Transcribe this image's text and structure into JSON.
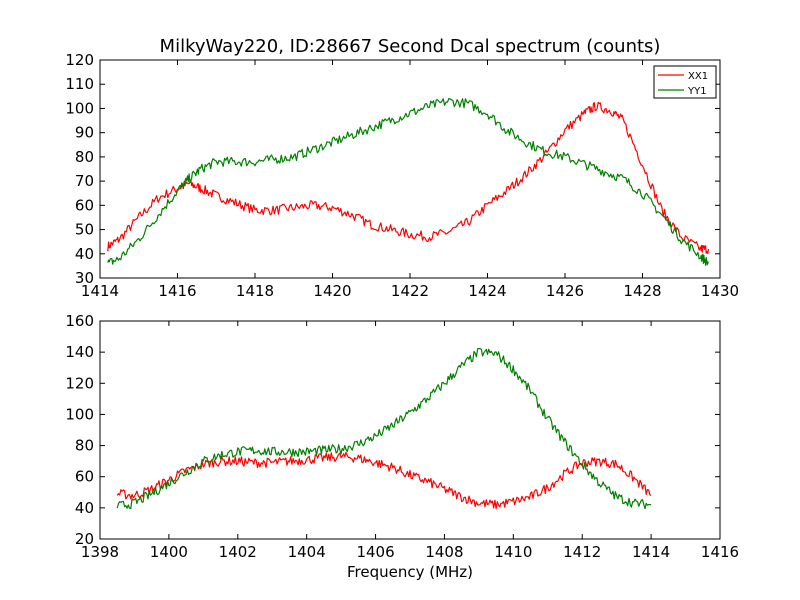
{
  "figure": {
    "title": "MilkyWay220, ID:28667 Second Dcal spectrum (counts)"
  },
  "colors": {
    "xx1": "#ff0000",
    "yy1": "#008000"
  },
  "chart_data": [
    {
      "type": "line",
      "title": "MilkyWay220, ID:28667 Second Dcal spectrum (counts)",
      "xlabel": "",
      "ylabel": "",
      "xlim": [
        1414,
        1430
      ],
      "ylim": [
        30,
        120
      ],
      "xticks": [
        1414,
        1416,
        1418,
        1420,
        1422,
        1424,
        1426,
        1428,
        1430
      ],
      "yticks": [
        30,
        40,
        50,
        60,
        70,
        80,
        90,
        100,
        110,
        120
      ],
      "grid": false,
      "legend": "top-right",
      "series": [
        {
          "name": "XX1",
          "color": "#ff0000",
          "x": [
            1414.2,
            1414.5,
            1415.0,
            1415.5,
            1416.0,
            1416.3,
            1416.6,
            1417.0,
            1417.5,
            1418.0,
            1418.5,
            1419.0,
            1419.5,
            1420.0,
            1420.5,
            1421.0,
            1421.5,
            1422.0,
            1422.5,
            1423.0,
            1423.5,
            1424.0,
            1424.5,
            1425.0,
            1425.5,
            1426.0,
            1426.5,
            1426.8,
            1427.2,
            1427.5,
            1428.0,
            1428.5,
            1429.0,
            1429.5,
            1429.7
          ],
          "y": [
            43,
            46,
            55,
            63,
            67,
            69,
            67,
            64,
            61,
            58,
            58,
            59,
            60,
            59,
            56,
            52,
            50,
            48,
            47,
            49,
            53,
            60,
            66,
            73,
            81,
            91,
            98,
            101,
            99,
            95,
            77,
            58,
            47,
            42,
            42
          ]
        },
        {
          "name": "YY1",
          "color": "#008000",
          "x": [
            1414.2,
            1414.5,
            1415.0,
            1415.5,
            1416.0,
            1416.3,
            1416.6,
            1417.0,
            1417.5,
            1418.0,
            1418.5,
            1419.0,
            1419.5,
            1420.0,
            1420.5,
            1421.0,
            1421.5,
            1422.0,
            1422.5,
            1423.0,
            1423.5,
            1424.0,
            1424.5,
            1425.0,
            1425.5,
            1426.0,
            1426.5,
            1427.0,
            1427.5,
            1428.0,
            1428.5,
            1429.0,
            1429.5,
            1429.7
          ],
          "y": [
            36,
            38,
            46,
            56,
            66,
            71,
            75,
            78,
            78,
            78,
            79,
            80,
            83,
            86,
            89,
            92,
            95,
            98,
            101,
            103,
            102,
            98,
            91,
            86,
            82,
            80,
            77,
            74,
            71,
            65,
            56,
            46,
            39,
            36
          ]
        }
      ]
    },
    {
      "type": "line",
      "title": "",
      "xlabel": "Frequency (MHz)",
      "ylabel": "",
      "xlim": [
        1398,
        1416
      ],
      "ylim": [
        20,
        160
      ],
      "xticks": [
        1398,
        1400,
        1402,
        1404,
        1406,
        1408,
        1410,
        1412,
        1414,
        1416
      ],
      "yticks": [
        20,
        40,
        60,
        80,
        100,
        120,
        140,
        160
      ],
      "grid": false,
      "series": [
        {
          "color": "#ff0000",
          "x": [
            1398.5,
            1399.0,
            1399.5,
            1400.0,
            1400.5,
            1401.0,
            1401.5,
            1402.0,
            1402.5,
            1403.0,
            1403.5,
            1404.0,
            1404.5,
            1405.0,
            1405.5,
            1406.0,
            1406.5,
            1407.0,
            1407.5,
            1408.0,
            1408.5,
            1409.0,
            1409.5,
            1410.0,
            1410.5,
            1411.0,
            1411.5,
            1412.0,
            1412.5,
            1413.0,
            1413.5,
            1414.0
          ],
          "y": [
            49,
            48,
            52,
            58,
            64,
            68,
            70,
            70,
            69,
            69,
            70,
            71,
            72,
            73,
            72,
            69,
            66,
            61,
            57,
            52,
            47,
            43,
            42,
            44,
            47,
            53,
            62,
            69,
            70,
            68,
            59,
            48
          ]
        },
        {
          "color": "#008000",
          "x": [
            1398.5,
            1399.0,
            1399.5,
            1400.0,
            1400.5,
            1401.0,
            1401.5,
            1402.0,
            1402.5,
            1403.0,
            1403.5,
            1404.0,
            1404.5,
            1405.0,
            1405.5,
            1406.0,
            1406.5,
            1407.0,
            1407.5,
            1408.0,
            1408.5,
            1409.0,
            1409.5,
            1410.0,
            1410.5,
            1411.0,
            1411.5,
            1412.0,
            1412.5,
            1413.0,
            1413.5,
            1414.0
          ],
          "y": [
            41,
            43,
            49,
            56,
            63,
            70,
            74,
            76,
            77,
            76,
            76,
            76,
            77,
            78,
            81,
            86,
            93,
            101,
            110,
            120,
            131,
            140,
            139,
            129,
            115,
            97,
            82,
            68,
            56,
            47,
            43,
            42
          ]
        }
      ]
    }
  ]
}
